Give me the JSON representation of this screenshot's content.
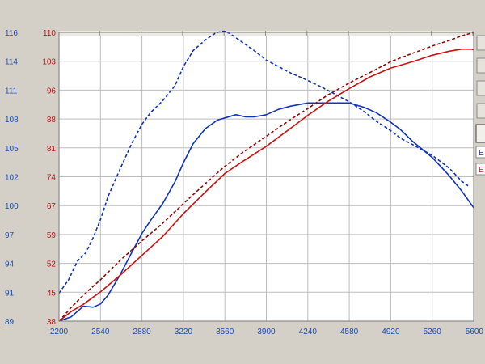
{
  "chart_data": {
    "type": "line",
    "title": "",
    "xlabel": "",
    "ylabel": "",
    "grid": true,
    "x_ticks": [
      2200,
      2540,
      2880,
      3220,
      3560,
      3900,
      4240,
      4580,
      4920,
      5260,
      5600
    ],
    "xlim": [
      2200,
      5600
    ],
    "y_left_ticks": [
      116,
      114,
      111,
      108,
      105,
      102,
      100,
      97,
      94,
      91,
      89
    ],
    "y_left_range": [
      89,
      116
    ],
    "y_red_ticks": [
      110,
      103,
      96,
      88,
      81,
      74,
      67,
      59,
      52,
      45,
      38
    ],
    "y_red_range": [
      38,
      110
    ],
    "legend": {
      "position": "right",
      "entries": [
        {
          "label": "E",
          "color": "#2233aa"
        },
        {
          "label": "E",
          "color": "#cc1111"
        }
      ]
    },
    "series": [
      {
        "color": "#1133bb",
        "style": "solid",
        "axis": "left",
        "x": [
          2200,
          2300,
          2400,
          2480,
          2540,
          2600,
          2700,
          2800,
          2880,
          2950,
          3050,
          3150,
          3220,
          3300,
          3400,
          3500,
          3560,
          3650,
          3730,
          3800,
          3900,
          4000,
          4100,
          4240,
          4350,
          4450,
          4580,
          4700,
          4800,
          4920,
          5000,
          5100,
          5260,
          5400,
          5500,
          5600
        ],
        "y": [
          89.0,
          89.4,
          90.4,
          90.3,
          90.6,
          91.4,
          93.3,
          95.5,
          97.2,
          98.4,
          100.0,
          102.0,
          103.8,
          105.6,
          107.0,
          107.8,
          108.0,
          108.3,
          108.1,
          108.1,
          108.3,
          108.8,
          109.1,
          109.4,
          109.4,
          109.4,
          109.4,
          109.0,
          108.5,
          107.6,
          106.9,
          105.8,
          104.3,
          102.6,
          101.2,
          99.6
        ]
      },
      {
        "color": "#1133bb",
        "style": "dashed",
        "axis": "left",
        "x": [
          2200,
          2280,
          2350,
          2420,
          2480,
          2540,
          2600,
          2700,
          2800,
          2880,
          2950,
          3050,
          3150,
          3220,
          3300,
          3400,
          3480,
          3530,
          3560,
          3600,
          3700,
          3800,
          3900,
          4000,
          4100,
          4240,
          4350,
          4450,
          4580,
          4700,
          4800,
          4920,
          5000,
          5100,
          5260,
          5400,
          5500,
          5560
        ],
        "y": [
          91.6,
          92.9,
          94.6,
          95.4,
          96.8,
          98.5,
          100.6,
          103.2,
          105.7,
          107.4,
          108.5,
          109.6,
          111.0,
          112.8,
          114.3,
          115.3,
          115.9,
          116.1,
          116.1,
          115.9,
          115.1,
          114.3,
          113.4,
          112.8,
          112.2,
          111.5,
          110.9,
          110.3,
          109.5,
          108.6,
          107.7,
          106.8,
          106.1,
          105.5,
          104.5,
          103.3,
          102.1,
          101.6
        ]
      },
      {
        "color": "#cc1111",
        "style": "solid",
        "axis": "right",
        "x": [
          2200,
          2300,
          2400,
          2540,
          2700,
          2880,
          3050,
          3220,
          3400,
          3560,
          3700,
          3900,
          4100,
          4240,
          4400,
          4580,
          4750,
          4920,
          5100,
          5260,
          5400,
          5500,
          5580,
          5600
        ],
        "y": [
          38.0,
          40.4,
          42.2,
          45.3,
          49.4,
          54.4,
          59.1,
          64.8,
          70.2,
          74.8,
          77.7,
          81.6,
          86.1,
          89.3,
          92.7,
          96.0,
          98.9,
          101.1,
          102.7,
          104.3,
          105.3,
          105.8,
          105.8,
          105.6
        ]
      },
      {
        "color": "#8b0a0a",
        "style": "dashed",
        "axis": "right",
        "x": [
          2200,
          2300,
          2400,
          2540,
          2700,
          2880,
          3050,
          3220,
          3400,
          3560,
          3700,
          3900,
          4100,
          4240,
          4400,
          4580,
          4750,
          4920,
          5100,
          5260,
          5400,
          5500,
          5600
        ],
        "y": [
          38.0,
          41.4,
          44.5,
          48.3,
          53.1,
          58.0,
          62.4,
          67.3,
          72.3,
          76.6,
          79.9,
          84.1,
          88.3,
          91.0,
          94.3,
          97.4,
          100.0,
          102.7,
          104.8,
          106.6,
          108.0,
          109.1,
          110.0
        ]
      }
    ]
  }
}
